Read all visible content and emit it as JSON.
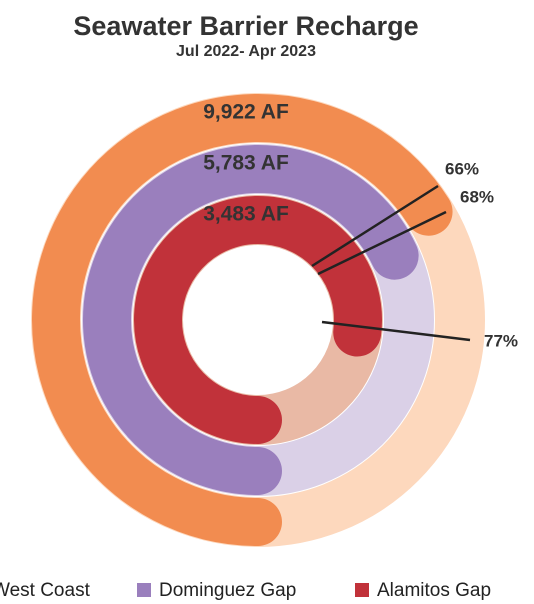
{
  "chart_data": {
    "type": "radial_bar",
    "title": "Seawater Barrier Recharge",
    "subtitle": "Jul 2022- Apr 2023",
    "categories": [
      "West Coast",
      "Dominguez Gap",
      "Alamitos Gap"
    ],
    "values": [
      66,
      68,
      77
    ],
    "value_labels": [
      "66%",
      "68%",
      "77%"
    ],
    "amount_labels": [
      "9,922 AF",
      "5,783 AF",
      "3,483 AF"
    ],
    "colors": [
      "#f28c50",
      "#9a7fbd",
      "#c1323a"
    ],
    "track_colors": [
      "#fdd8bd",
      "#dad0e7",
      "#e9b9a5"
    ],
    "max": 100
  }
}
